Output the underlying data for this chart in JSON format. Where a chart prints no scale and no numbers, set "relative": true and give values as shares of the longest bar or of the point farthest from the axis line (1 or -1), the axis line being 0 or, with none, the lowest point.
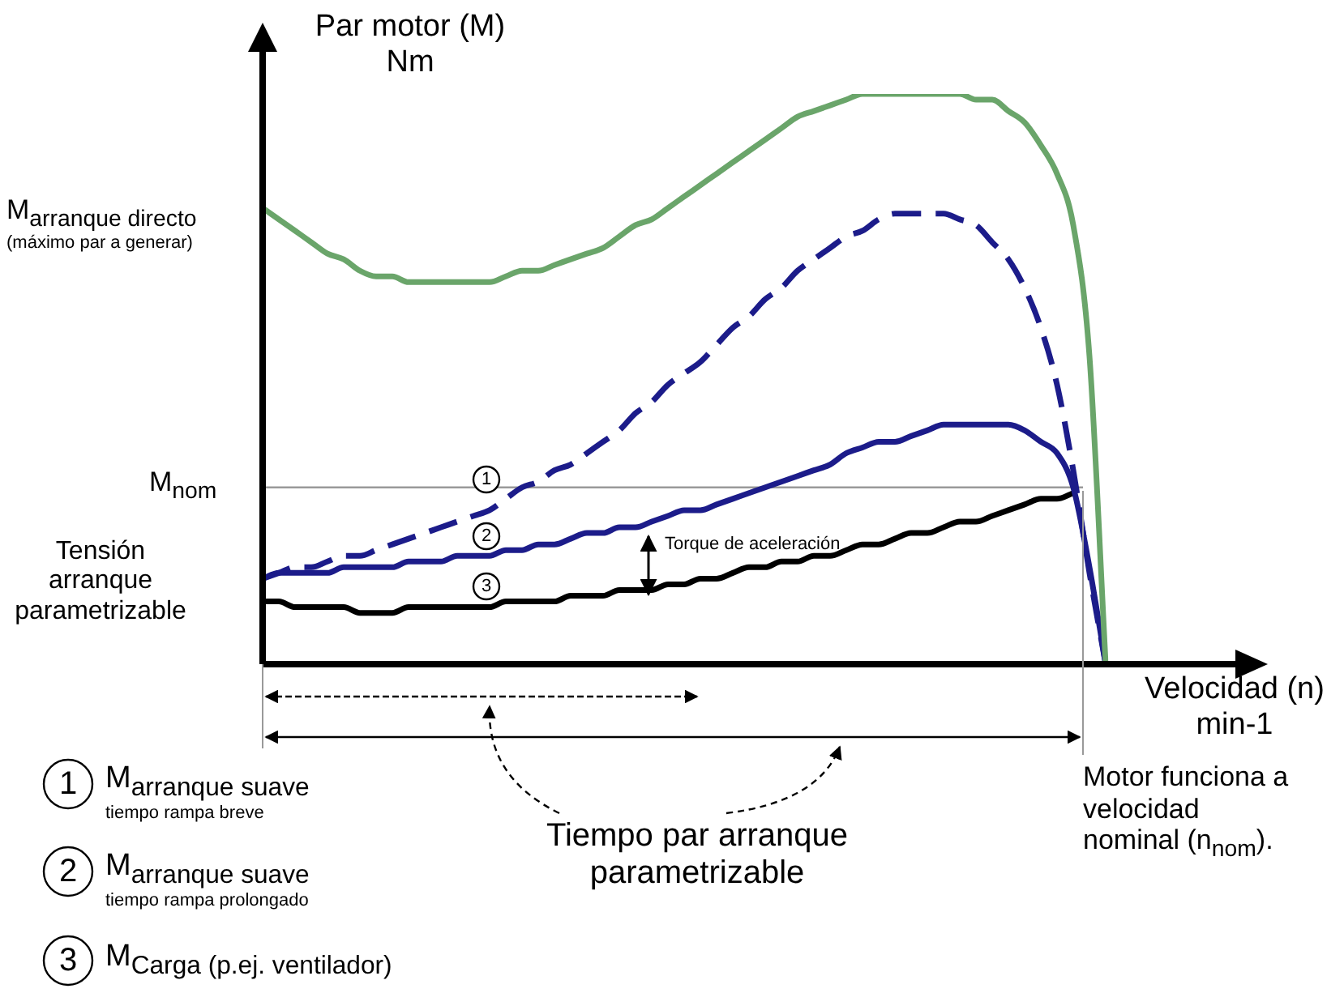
{
  "chart_data": {
    "type": "line",
    "relative": true,
    "xlabel": "Velocidad (n)\nmin-1",
    "ylabel": "Par motor (M)\nNm",
    "categories": [
      null,
      null,
      null,
      null,
      null,
      null,
      null,
      null,
      null,
      null,
      null,
      null,
      null,
      null,
      null,
      null,
      null,
      null,
      null,
      null,
      null,
      null,
      null,
      null,
      null,
      null,
      null,
      null,
      null,
      null,
      null,
      null,
      null,
      null,
      null,
      null,
      null,
      null,
      null,
      null,
      null,
      null,
      null,
      null,
      null,
      null,
      null,
      null,
      null,
      null,
      null,
      null,
      null
    ],
    "series": [
      {
        "color": "#6aa56a",
        "values": [
          0.8,
          0.78,
          0.76,
          0.74,
          0.72,
          0.71,
          0.69,
          0.68,
          0.68,
          0.67,
          0.67,
          0.67,
          0.67,
          0.67,
          0.67,
          0.68,
          0.69,
          0.69,
          0.7,
          0.71,
          0.72,
          0.73,
          0.75,
          0.77,
          0.78,
          0.8,
          0.82,
          0.84,
          0.86,
          0.88,
          0.9,
          0.92,
          0.94,
          0.96,
          0.97,
          0.98,
          0.99,
          1,
          1,
          1,
          1,
          1,
          1,
          1,
          0.99,
          0.99,
          0.97,
          0.95,
          0.91,
          0.86,
          0.77,
          0.54,
          0
        ]
      },
      {
        "color": "#1c1c8a",
        "line_style": "dashed",
        "values": [
          0.15,
          0.16,
          0.17,
          0.17,
          0.18,
          0.19,
          0.19,
          0.2,
          0.21,
          0.22,
          0.23,
          0.24,
          0.25,
          0.26,
          0.27,
          0.29,
          0.31,
          0.32,
          0.34,
          0.35,
          0.37,
          0.39,
          0.41,
          0.44,
          0.46,
          0.49,
          0.51,
          0.53,
          0.56,
          0.59,
          0.61,
          0.64,
          0.66,
          0.69,
          0.71,
          0.73,
          0.75,
          0.76,
          0.78,
          0.79,
          0.79,
          0.79,
          0.79,
          0.78,
          0.77,
          0.74,
          0.71,
          0.66,
          0.59,
          0.49,
          0.34,
          0.16,
          0
        ]
      },
      {
        "color": "#1c1c8a",
        "values": [
          0.15,
          0.16,
          0.16,
          0.16,
          0.16,
          0.17,
          0.17,
          0.17,
          0.17,
          0.18,
          0.18,
          0.18,
          0.19,
          0.19,
          0.19,
          0.2,
          0.2,
          0.21,
          0.21,
          0.22,
          0.23,
          0.23,
          0.24,
          0.24,
          0.25,
          0.26,
          0.27,
          0.27,
          0.28,
          0.29,
          0.3,
          0.31,
          0.32,
          0.33,
          0.34,
          0.35,
          0.37,
          0.38,
          0.39,
          0.39,
          0.4,
          0.41,
          0.42,
          0.42,
          0.42,
          0.42,
          0.42,
          0.41,
          0.39,
          0.37,
          0.31,
          0.17,
          0
        ]
      },
      {
        "color": "#000000",
        "values": [
          0.11,
          0.11,
          0.1,
          0.1,
          0.1,
          0.1,
          0.09,
          0.09,
          0.09,
          0.1,
          0.1,
          0.1,
          0.1,
          0.1,
          0.1,
          0.11,
          0.11,
          0.11,
          0.11,
          0.12,
          0.12,
          0.12,
          0.13,
          0.13,
          0.13,
          0.14,
          0.14,
          0.15,
          0.15,
          0.16,
          0.17,
          0.17,
          0.18,
          0.18,
          0.19,
          0.19,
          0.2,
          0.21,
          0.21,
          0.22,
          0.23,
          0.23,
          0.24,
          0.25,
          0.25,
          0.26,
          0.27,
          0.28,
          0.29,
          0.29,
          0.3,
          null,
          null
        ]
      }
    ],
    "ref_lines": [
      {
        "axis": "y",
        "value": 0.31,
        "label": "M$_{nom}$",
        "color": "#999999"
      }
    ],
    "annotations": [
      "M$_{arranque directo}$\n(máximo par a generar)",
      "Tensión\narranque\nparametrizable",
      "1",
      "2",
      "3",
      "Torque de aceleración",
      "Tiempo par arranque\nparametrizable",
      "Motor funciona a velocidad\nnominal (n$_{nom}$).",
      "1",
      "M$_{arranque suave}$\ntiempo rampa breve",
      "2",
      "M$_{arranque suave}$\ntiempo rampa prolongado",
      "3",
      "M$_{Carga (p.ej. ventilador)}$"
    ]
  }
}
